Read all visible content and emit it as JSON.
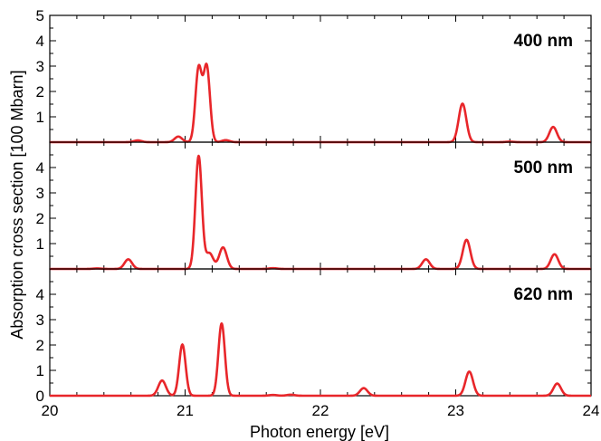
{
  "chart_data": {
    "type": "line",
    "xlabel": "Photon energy [eV]",
    "ylabel": "Absorption cross section [100 Mbarn]",
    "xlim": [
      20,
      24
    ],
    "x_ticks": [
      "20",
      "21",
      "22",
      "23",
      "24"
    ],
    "line_color": "#e8262a",
    "grid": false,
    "panels": [
      {
        "label": "400 nm",
        "ylim": [
          0,
          5
        ],
        "y_ticks": [
          "1",
          "2",
          "3",
          "4",
          "5"
        ],
        "peaks": [
          {
            "x": 20.65,
            "y": 0.07
          },
          {
            "x": 20.95,
            "y": 0.22
          },
          {
            "x": 21.1,
            "y": 2.9
          },
          {
            "x": 21.16,
            "y": 2.95
          },
          {
            "x": 21.3,
            "y": 0.08
          },
          {
            "x": 23.05,
            "y": 1.52
          },
          {
            "x": 23.4,
            "y": 0.02
          },
          {
            "x": 23.72,
            "y": 0.6
          }
        ]
      },
      {
        "label": "500 nm",
        "ylim": [
          0,
          5
        ],
        "y_ticks": [
          "1",
          "2",
          "3",
          "4"
        ],
        "peaks": [
          {
            "x": 20.35,
            "y": 0.02
          },
          {
            "x": 20.58,
            "y": 0.38
          },
          {
            "x": 21.1,
            "y": 4.45
          },
          {
            "x": 21.18,
            "y": 0.62
          },
          {
            "x": 21.28,
            "y": 0.85
          },
          {
            "x": 21.65,
            "y": 0.03
          },
          {
            "x": 22.78,
            "y": 0.38
          },
          {
            "x": 23.08,
            "y": 1.15
          },
          {
            "x": 23.73,
            "y": 0.58
          }
        ]
      },
      {
        "label": "620 nm",
        "ylim": [
          0,
          5
        ],
        "y_ticks": [
          "0",
          "1",
          "2",
          "3",
          "4"
        ],
        "peaks": [
          {
            "x": 20.83,
            "y": 0.6
          },
          {
            "x": 20.98,
            "y": 2.02
          },
          {
            "x": 21.27,
            "y": 2.85
          },
          {
            "x": 21.65,
            "y": 0.03
          },
          {
            "x": 21.78,
            "y": 0.04
          },
          {
            "x": 22.32,
            "y": 0.3
          },
          {
            "x": 23.1,
            "y": 0.95
          },
          {
            "x": 23.75,
            "y": 0.48
          }
        ]
      }
    ]
  }
}
